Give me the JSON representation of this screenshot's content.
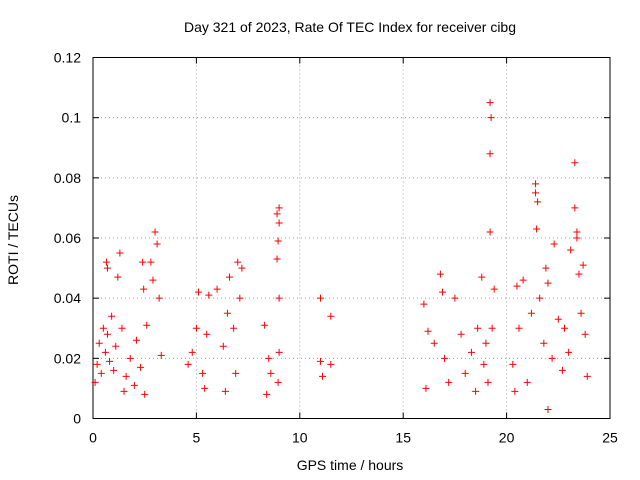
{
  "chart_data": {
    "type": "scatter",
    "title": "Day 321 of 2023, Rate Of TEC Index for receiver cibg",
    "xlabel": "GPS time / hours",
    "ylabel": "ROTI / TECUs",
    "xlim": [
      0,
      25
    ],
    "ylim": [
      0,
      0.12
    ],
    "x_ticks": [
      0,
      5,
      10,
      15,
      20,
      25
    ],
    "x_tick_labels": [
      "0",
      "5",
      "10",
      "15",
      "20",
      "25"
    ],
    "y_ticks": [
      0,
      0.02,
      0.04,
      0.06,
      0.08,
      0.1,
      0.12
    ],
    "y_tick_labels": [
      "0",
      "0.02",
      "0.04",
      "0.06",
      "0.08",
      "0.1",
      "0.12"
    ],
    "grid": true,
    "marker": "+",
    "color": "#ff0000",
    "series": [
      {
        "values": [
          {
            "x": 0.1,
            "y": 0.012
          },
          {
            "x": 0.2,
            "y": 0.018
          },
          {
            "x": 0.3,
            "y": 0.025
          },
          {
            "x": 0.4,
            "y": 0.015
          },
          {
            "x": 0.5,
            "y": 0.03
          },
          {
            "x": 0.6,
            "y": 0.022
          },
          {
            "x": 0.7,
            "y": 0.028
          },
          {
            "x": 0.8,
            "y": 0.019
          },
          {
            "x": 0.9,
            "y": 0.034
          },
          {
            "x": 1.0,
            "y": 0.016
          },
          {
            "x": 0.65,
            "y": 0.052
          },
          {
            "x": 0.7,
            "y": 0.05
          },
          {
            "x": 1.3,
            "y": 0.055
          },
          {
            "x": 1.2,
            "y": 0.047
          },
          {
            "x": 1.1,
            "y": 0.024
          },
          {
            "x": 1.4,
            "y": 0.03
          },
          {
            "x": 1.6,
            "y": 0.014
          },
          {
            "x": 1.8,
            "y": 0.02
          },
          {
            "x": 2.0,
            "y": 0.011
          },
          {
            "x": 2.1,
            "y": 0.026
          },
          {
            "x": 2.3,
            "y": 0.017
          },
          {
            "x": 2.4,
            "y": 0.052
          },
          {
            "x": 2.45,
            "y": 0.043
          },
          {
            "x": 2.6,
            "y": 0.031
          },
          {
            "x": 2.8,
            "y": 0.052
          },
          {
            "x": 2.9,
            "y": 0.046
          },
          {
            "x": 3.0,
            "y": 0.062
          },
          {
            "x": 3.1,
            "y": 0.058
          },
          {
            "x": 3.2,
            "y": 0.04
          },
          {
            "x": 3.3,
            "y": 0.021
          },
          {
            "x": 2.5,
            "y": 0.008
          },
          {
            "x": 1.5,
            "y": 0.009
          },
          {
            "x": 4.6,
            "y": 0.018
          },
          {
            "x": 4.8,
            "y": 0.022
          },
          {
            "x": 5.0,
            "y": 0.03
          },
          {
            "x": 5.1,
            "y": 0.042
          },
          {
            "x": 5.3,
            "y": 0.015
          },
          {
            "x": 5.5,
            "y": 0.028
          },
          {
            "x": 5.6,
            "y": 0.041
          },
          {
            "x": 5.4,
            "y": 0.01
          },
          {
            "x": 6.0,
            "y": 0.043
          },
          {
            "x": 6.3,
            "y": 0.024
          },
          {
            "x": 6.5,
            "y": 0.035
          },
          {
            "x": 6.6,
            "y": 0.047
          },
          {
            "x": 6.8,
            "y": 0.03
          },
          {
            "x": 7.0,
            "y": 0.052
          },
          {
            "x": 7.1,
            "y": 0.04
          },
          {
            "x": 7.2,
            "y": 0.05
          },
          {
            "x": 6.9,
            "y": 0.015
          },
          {
            "x": 6.4,
            "y": 0.009
          },
          {
            "x": 8.3,
            "y": 0.031
          },
          {
            "x": 8.5,
            "y": 0.02
          },
          {
            "x": 8.6,
            "y": 0.015
          },
          {
            "x": 8.4,
            "y": 0.008
          },
          {
            "x": 8.9,
            "y": 0.068
          },
          {
            "x": 9.0,
            "y": 0.07
          },
          {
            "x": 9.0,
            "y": 0.065
          },
          {
            "x": 8.95,
            "y": 0.059
          },
          {
            "x": 8.9,
            "y": 0.053
          },
          {
            "x": 9.0,
            "y": 0.04
          },
          {
            "x": 9.0,
            "y": 0.022
          },
          {
            "x": 8.95,
            "y": 0.012
          },
          {
            "x": 11.0,
            "y": 0.04
          },
          {
            "x": 11.0,
            "y": 0.019
          },
          {
            "x": 11.1,
            "y": 0.014
          },
          {
            "x": 11.5,
            "y": 0.034
          },
          {
            "x": 11.5,
            "y": 0.018
          },
          {
            "x": 16.0,
            "y": 0.038
          },
          {
            "x": 16.2,
            "y": 0.029
          },
          {
            "x": 16.1,
            "y": 0.01
          },
          {
            "x": 16.5,
            "y": 0.025
          },
          {
            "x": 16.8,
            "y": 0.048
          },
          {
            "x": 16.9,
            "y": 0.042
          },
          {
            "x": 17.0,
            "y": 0.02
          },
          {
            "x": 17.5,
            "y": 0.04
          },
          {
            "x": 17.8,
            "y": 0.028
          },
          {
            "x": 18.0,
            "y": 0.015
          },
          {
            "x": 18.3,
            "y": 0.022
          },
          {
            "x": 18.6,
            "y": 0.03
          },
          {
            "x": 18.8,
            "y": 0.047
          },
          {
            "x": 18.9,
            "y": 0.018
          },
          {
            "x": 19.2,
            "y": 0.105
          },
          {
            "x": 19.25,
            "y": 0.1
          },
          {
            "x": 19.2,
            "y": 0.088
          },
          {
            "x": 19.2,
            "y": 0.062
          },
          {
            "x": 19.4,
            "y": 0.043
          },
          {
            "x": 19.3,
            "y": 0.03
          },
          {
            "x": 19.1,
            "y": 0.012
          },
          {
            "x": 19.0,
            "y": 0.025
          },
          {
            "x": 18.5,
            "y": 0.009
          },
          {
            "x": 17.2,
            "y": 0.012
          },
          {
            "x": 20.3,
            "y": 0.018
          },
          {
            "x": 20.5,
            "y": 0.044
          },
          {
            "x": 20.6,
            "y": 0.03
          },
          {
            "x": 20.8,
            "y": 0.046
          },
          {
            "x": 21.0,
            "y": 0.012
          },
          {
            "x": 21.2,
            "y": 0.035
          },
          {
            "x": 21.4,
            "y": 0.078
          },
          {
            "x": 21.4,
            "y": 0.075
          },
          {
            "x": 21.5,
            "y": 0.072
          },
          {
            "x": 21.45,
            "y": 0.063
          },
          {
            "x": 21.6,
            "y": 0.04
          },
          {
            "x": 21.8,
            "y": 0.025
          },
          {
            "x": 21.9,
            "y": 0.05
          },
          {
            "x": 22.0,
            "y": 0.045
          },
          {
            "x": 22.2,
            "y": 0.02
          },
          {
            "x": 22.3,
            "y": 0.058
          },
          {
            "x": 22.5,
            "y": 0.033
          },
          {
            "x": 22.7,
            "y": 0.016
          },
          {
            "x": 22.8,
            "y": 0.03
          },
          {
            "x": 23.0,
            "y": 0.022
          },
          {
            "x": 23.1,
            "y": 0.056
          },
          {
            "x": 23.3,
            "y": 0.085
          },
          {
            "x": 23.3,
            "y": 0.07
          },
          {
            "x": 23.4,
            "y": 0.062
          },
          {
            "x": 23.4,
            "y": 0.06
          },
          {
            "x": 23.5,
            "y": 0.048
          },
          {
            "x": 23.6,
            "y": 0.035
          },
          {
            "x": 23.7,
            "y": 0.051
          },
          {
            "x": 23.8,
            "y": 0.028
          },
          {
            "x": 23.9,
            "y": 0.014
          },
          {
            "x": 22.0,
            "y": 0.003
          },
          {
            "x": 20.4,
            "y": 0.009
          }
        ]
      }
    ]
  }
}
